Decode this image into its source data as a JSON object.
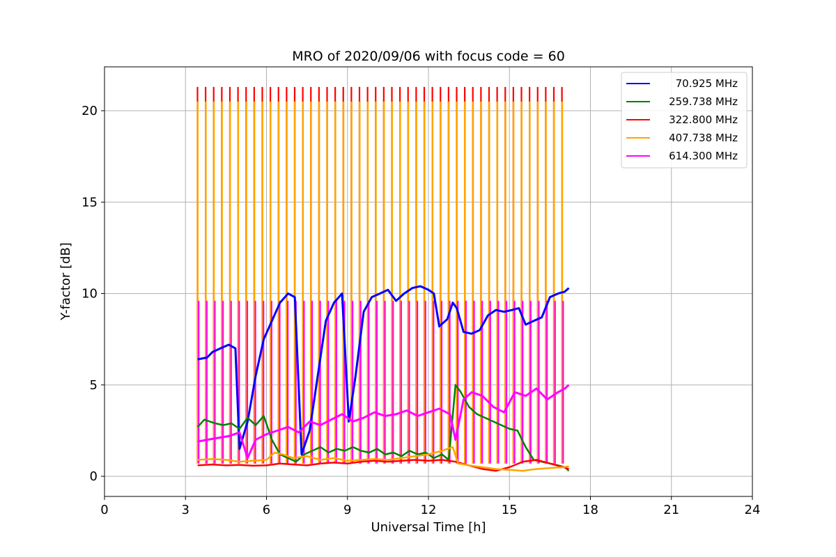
{
  "chart_data": {
    "type": "line",
    "title": "MRO of 2020/09/06 with focus code = 60",
    "xlabel": "Universal Time [h]",
    "ylabel": "Y-factor [dB]",
    "xlim": [
      0,
      24
    ],
    "ylim": [
      -1.1,
      22.4
    ],
    "xticks": [
      0,
      3,
      6,
      9,
      12,
      15,
      18,
      21,
      24
    ],
    "yticks": [
      0,
      5,
      10,
      15,
      20
    ],
    "grid": true,
    "legend_position": "top-right",
    "pulse_times": [
      3.45,
      3.75,
      4.05,
      4.35,
      4.65,
      4.95,
      5.25,
      5.55,
      5.85,
      6.15,
      6.45,
      6.75,
      7.05,
      7.35,
      7.65,
      7.95,
      8.25,
      8.55,
      8.85,
      9.15,
      9.45,
      9.75,
      10.05,
      10.35,
      10.65,
      10.95,
      11.25,
      11.55,
      11.85,
      12.15,
      12.45,
      12.75,
      13.05,
      13.35,
      13.65,
      13.95,
      14.25,
      14.55,
      14.85,
      15.15,
      15.45,
      15.75,
      16.05,
      16.35,
      16.65,
      16.95
    ],
    "series": [
      {
        "name": "70.925 MHz",
        "color": "#0000ff",
        "x": [
          3.45,
          3.8,
          4.0,
          4.3,
          4.6,
          4.85,
          5.0,
          5.3,
          5.6,
          5.9,
          6.2,
          6.5,
          6.8,
          7.05,
          7.3,
          7.6,
          7.9,
          8.2,
          8.5,
          8.8,
          9.05,
          9.3,
          9.6,
          9.9,
          10.2,
          10.5,
          10.8,
          11.1,
          11.4,
          11.7,
          12.0,
          12.2,
          12.4,
          12.7,
          12.9,
          13.05,
          13.3,
          13.6,
          13.9,
          14.2,
          14.5,
          14.8,
          15.1,
          15.35,
          15.6,
          15.9,
          16.2,
          16.5,
          16.8,
          17.05,
          17.2
        ],
        "y": [
          6.4,
          6.5,
          6.8,
          7.0,
          7.2,
          7.0,
          1.5,
          3.0,
          5.5,
          7.5,
          8.5,
          9.5,
          10.0,
          9.8,
          1.2,
          2.5,
          5.5,
          8.5,
          9.5,
          10.0,
          3.0,
          5.5,
          9.0,
          9.8,
          10.0,
          10.2,
          9.6,
          10.0,
          10.3,
          10.4,
          10.2,
          10.0,
          8.2,
          8.6,
          9.5,
          9.2,
          7.9,
          7.8,
          8.0,
          8.8,
          9.1,
          9.0,
          9.1,
          9.2,
          8.3,
          8.5,
          8.7,
          9.8,
          10.0,
          10.1,
          10.3
        ]
      },
      {
        "name": "259.738 MHz",
        "color": "#008000",
        "x": [
          3.45,
          3.7,
          3.9,
          4.1,
          4.4,
          4.7,
          5.0,
          5.3,
          5.6,
          5.9,
          6.2,
          6.5,
          6.8,
          7.1,
          7.4,
          7.7,
          8.0,
          8.3,
          8.6,
          8.9,
          9.2,
          9.5,
          9.8,
          10.1,
          10.4,
          10.7,
          11.0,
          11.3,
          11.6,
          11.9,
          12.2,
          12.5,
          12.75,
          13.0,
          13.2,
          13.5,
          13.8,
          14.1,
          14.4,
          14.7,
          15.0,
          15.3,
          15.6,
          15.9,
          16.2,
          16.5,
          16.8,
          17.05,
          17.2
        ],
        "y": [
          2.7,
          3.1,
          3.0,
          2.9,
          2.8,
          2.9,
          2.6,
          3.2,
          2.8,
          3.3,
          2.0,
          1.2,
          1.0,
          0.8,
          1.2,
          1.4,
          1.6,
          1.3,
          1.5,
          1.4,
          1.6,
          1.4,
          1.3,
          1.5,
          1.2,
          1.3,
          1.1,
          1.4,
          1.2,
          1.3,
          1.0,
          1.2,
          0.9,
          5.0,
          4.6,
          3.8,
          3.4,
          3.2,
          3.0,
          2.8,
          2.6,
          2.5,
          1.6,
          0.9,
          0.8,
          0.7,
          0.6,
          0.5,
          0.3
        ]
      },
      {
        "name": "322.800 MHz",
        "color": "#ff0000",
        "x": [
          3.45,
          4.0,
          4.5,
          5.0,
          5.5,
          6.0,
          6.5,
          7.0,
          7.5,
          8.0,
          8.5,
          9.0,
          9.5,
          10.0,
          10.5,
          11.0,
          11.5,
          12.0,
          12.5,
          13.0,
          13.5,
          14.0,
          14.5,
          15.0,
          15.5,
          16.0,
          16.5,
          17.0,
          17.2
        ],
        "y": [
          0.6,
          0.65,
          0.6,
          0.62,
          0.58,
          0.6,
          0.7,
          0.65,
          0.6,
          0.7,
          0.75,
          0.7,
          0.8,
          0.85,
          0.8,
          0.85,
          0.9,
          0.85,
          0.9,
          0.8,
          0.6,
          0.4,
          0.3,
          0.5,
          0.8,
          0.9,
          0.7,
          0.5,
          0.4
        ]
      },
      {
        "name": "407.738 MHz",
        "color": "#ffa500",
        "x": [
          3.45,
          4.0,
          4.5,
          5.0,
          5.5,
          6.0,
          6.3,
          6.6,
          7.0,
          7.5,
          8.0,
          8.5,
          9.0,
          9.5,
          10.0,
          10.5,
          11.0,
          11.5,
          12.0,
          12.5,
          12.9,
          13.1,
          13.5,
          14.0,
          14.5,
          15.0,
          15.5,
          16.0,
          16.5,
          17.0,
          17.2
        ],
        "y": [
          0.9,
          0.95,
          0.9,
          0.8,
          0.85,
          0.9,
          1.3,
          1.2,
          1.0,
          1.1,
          0.9,
          1.0,
          0.85,
          0.9,
          0.95,
          0.9,
          1.0,
          1.1,
          1.2,
          1.4,
          1.6,
          0.7,
          0.6,
          0.5,
          0.4,
          0.35,
          0.3,
          0.4,
          0.45,
          0.5,
          0.55
        ]
      },
      {
        "name": "614.300 MHz",
        "color": "#ff00ff",
        "x": [
          3.45,
          3.8,
          4.2,
          4.6,
          5.0,
          5.3,
          5.6,
          6.0,
          6.4,
          6.8,
          7.2,
          7.6,
          8.0,
          8.4,
          8.8,
          9.2,
          9.6,
          10.0,
          10.4,
          10.8,
          11.2,
          11.6,
          12.0,
          12.4,
          12.8,
          13.0,
          13.3,
          13.6,
          14.0,
          14.4,
          14.8,
          15.2,
          15.6,
          16.0,
          16.4,
          16.8,
          17.05,
          17.2
        ],
        "y": [
          1.9,
          2.0,
          2.1,
          2.2,
          2.4,
          1.0,
          2.0,
          2.3,
          2.5,
          2.7,
          2.4,
          3.0,
          2.8,
          3.1,
          3.4,
          3.0,
          3.2,
          3.5,
          3.3,
          3.4,
          3.6,
          3.3,
          3.5,
          3.7,
          3.4,
          2.0,
          4.2,
          4.6,
          4.4,
          3.8,
          3.5,
          4.6,
          4.4,
          4.8,
          4.2,
          4.6,
          4.8,
          5.0
        ]
      }
    ]
  }
}
